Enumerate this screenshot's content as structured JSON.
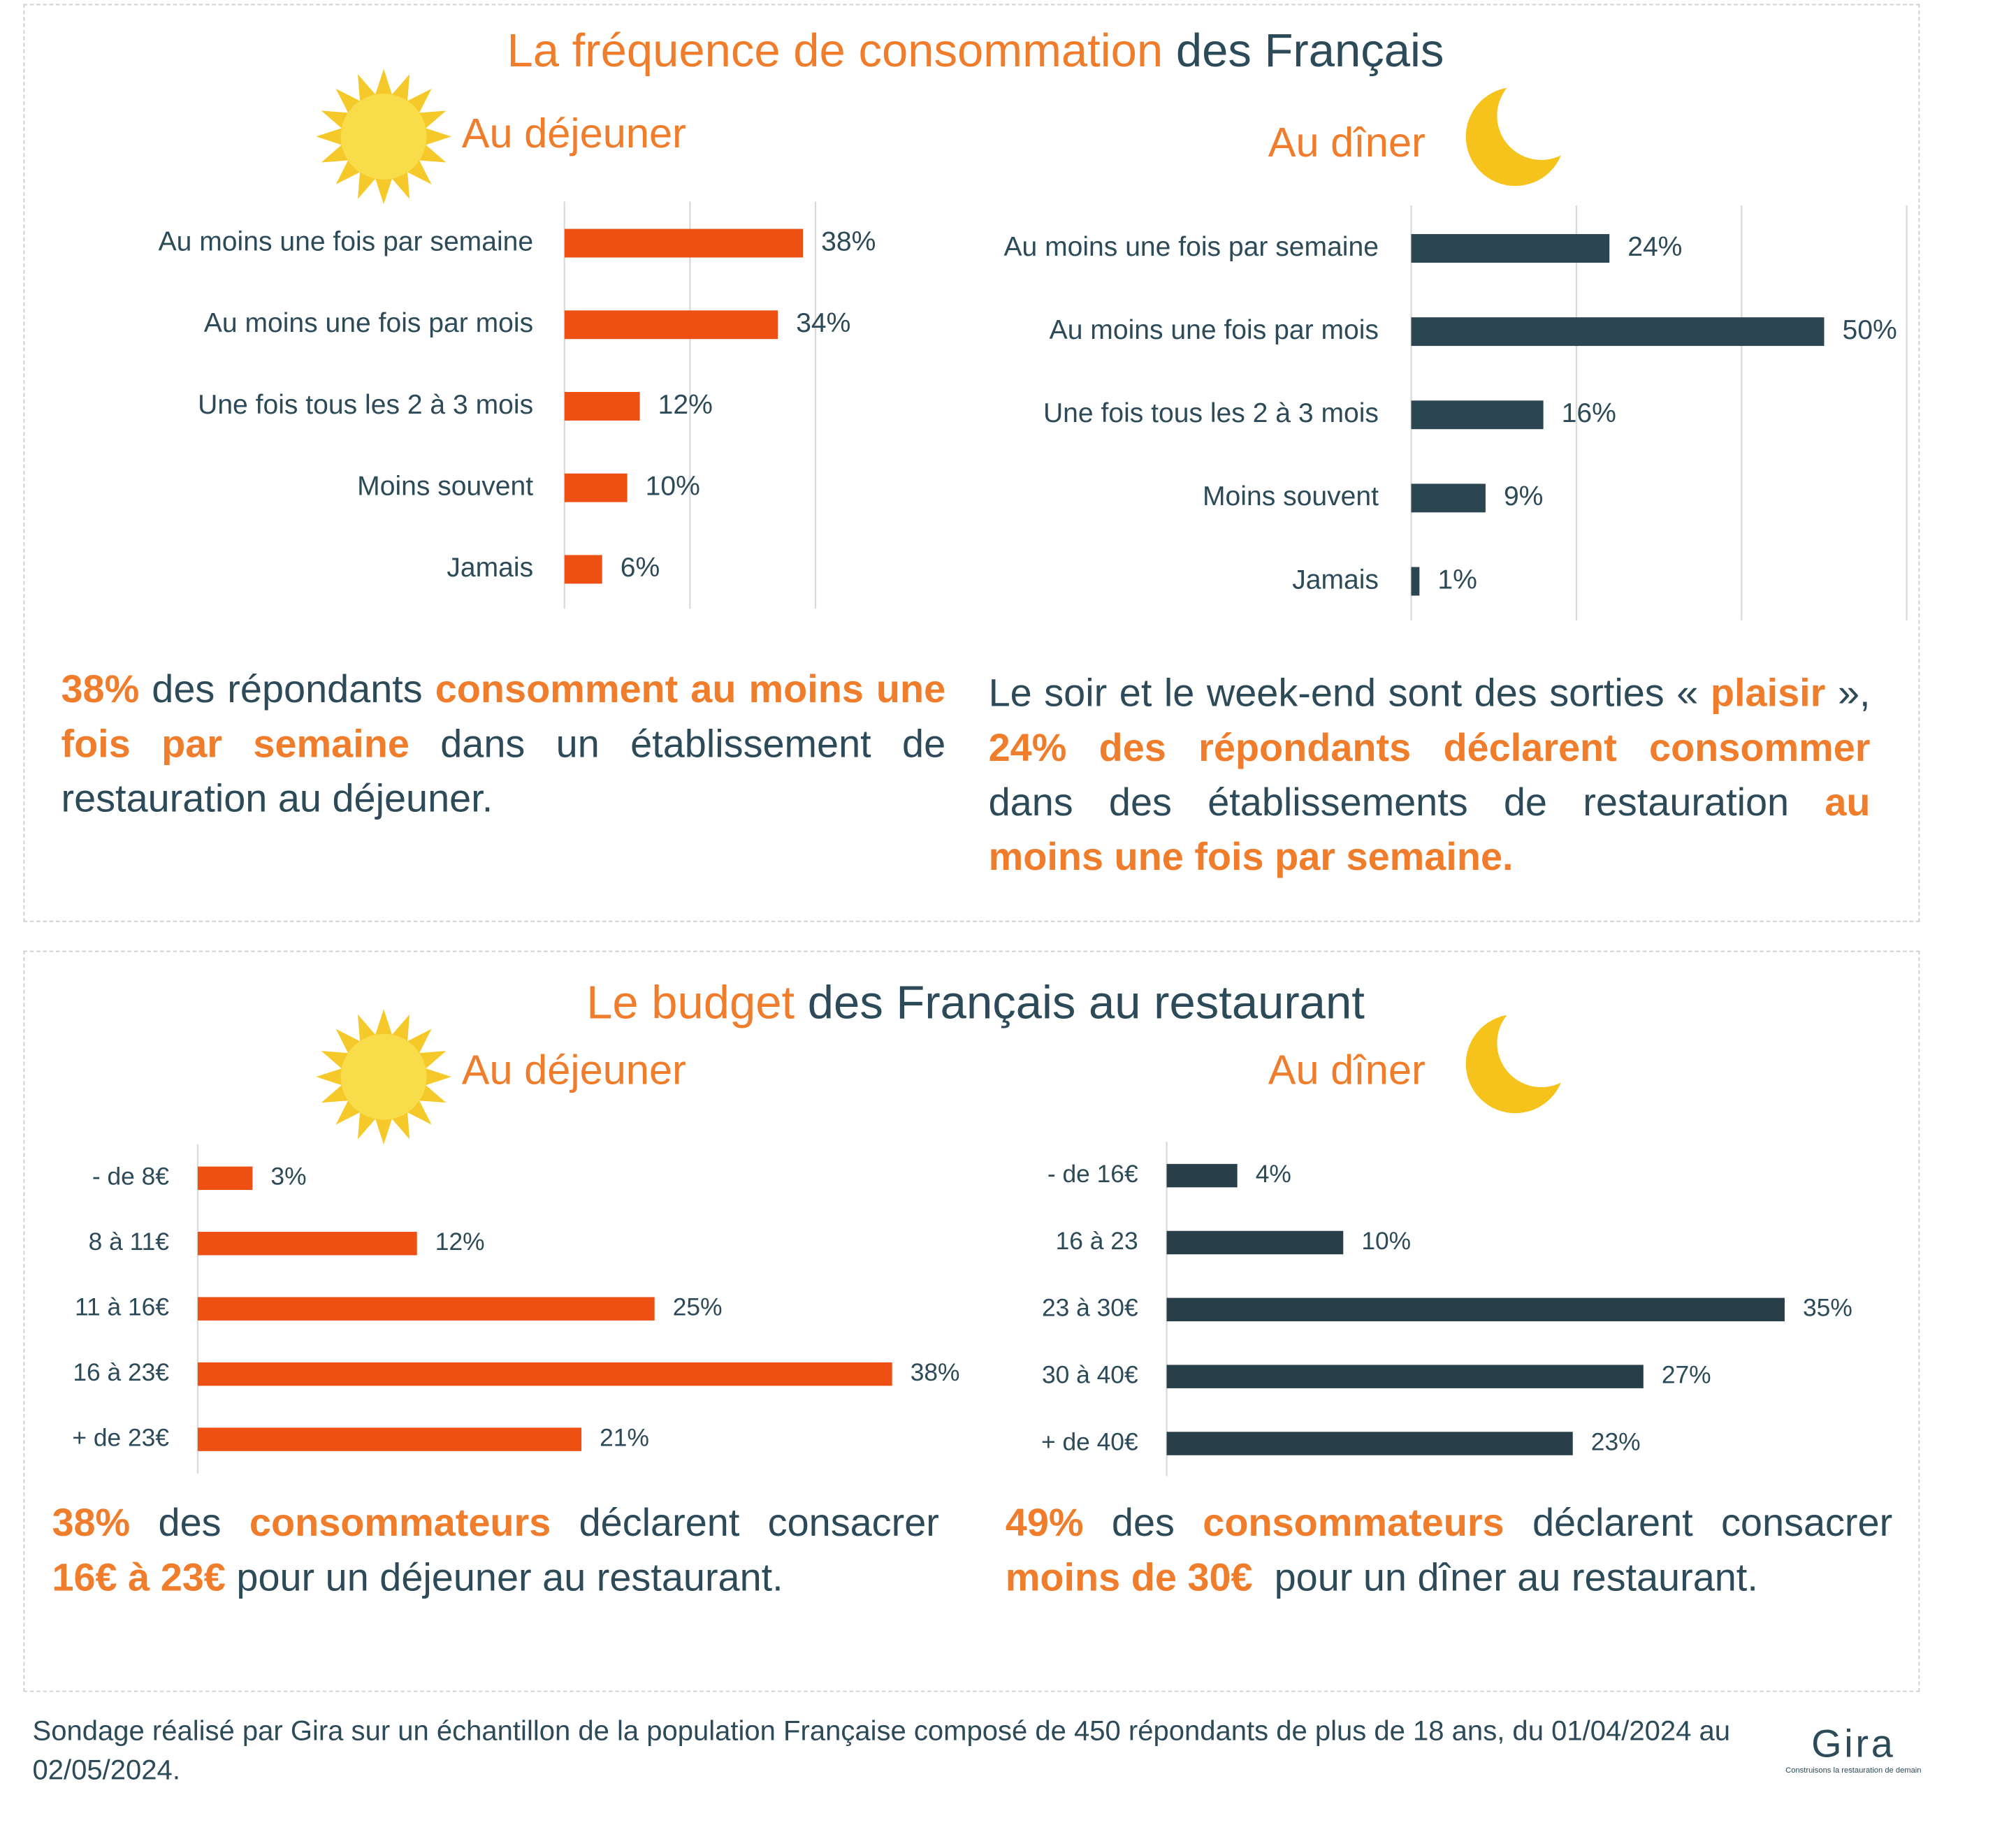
{
  "sections": [
    {
      "title": [
        {
          "text": "La fréquence de consommation",
          "accent": true
        },
        {
          "text": " des Français",
          "accent": false
        }
      ],
      "notes": [
        [
          {
            "text": "38%",
            "accent": true
          },
          {
            "text": " des répondants ",
            "accent": false
          },
          {
            "text": "consomment au moins une fois par semaine",
            "accent": true
          },
          {
            "text": " dans un établissement de restauration au déjeuner.",
            "accent": false
          }
        ],
        [
          {
            "text": "Le soir et le week-end sont des sorties « ",
            "accent": false
          },
          {
            "text": "plaisir",
            "accent": true
          },
          {
            "text": " », ",
            "accent": false
          },
          {
            "text": "24% des répondants déclarent consommer",
            "accent": true
          },
          {
            "text": " dans des établissements de restauration ",
            "accent": false
          },
          {
            "text": "au moins une fois par semaine.",
            "accent": true
          }
        ]
      ]
    },
    {
      "title": [
        {
          "text": "Le budget",
          "accent": true
        },
        {
          "text": " des Français au restaurant",
          "accent": false
        }
      ],
      "notes": [
        [
          {
            "text": "38%",
            "accent": true
          },
          {
            "text": " des ",
            "accent": false
          },
          {
            "text": "consommateurs",
            "accent": true
          },
          {
            "text": " déclarent consacrer ",
            "accent": false
          },
          {
            "text": "16€ à 23€",
            "accent": true
          },
          {
            "text": " pour un déjeuner au restaurant.",
            "accent": false
          }
        ],
        [
          {
            "text": "49%",
            "accent": true
          },
          {
            "text": " des ",
            "accent": false
          },
          {
            "text": "consommateurs",
            "accent": true
          },
          {
            "text": " déclarent consacrer ",
            "accent": false
          },
          {
            "text": "moins de 30€",
            "accent": true
          },
          {
            "text": "  pour un dîner au restaurant.",
            "accent": false
          }
        ]
      ]
    }
  ],
  "chart_data": [
    {
      "type": "hbar",
      "title": "Au déjeuner",
      "color": "#ee5014",
      "categories": [
        "Au moins une fois par semaine",
        "Au moins une fois par mois",
        "Une fois tous les 2 à 3 mois",
        "Moins souvent",
        "Jamais"
      ],
      "values": [
        38,
        34,
        12,
        10,
        6
      ],
      "value_labels": [
        "38%",
        "34%",
        "12%",
        "10%",
        "6%"
      ],
      "xlim": [
        0,
        40
      ],
      "xticks": [
        0,
        20,
        40
      ],
      "grid": true
    },
    {
      "type": "hbar",
      "title": "Au dîner",
      "color": "#2b4551",
      "categories": [
        "Au moins une fois par semaine",
        "Au moins une fois par mois",
        "Une fois tous les 2 à 3 mois",
        "Moins souvent",
        "Jamais"
      ],
      "values": [
        24,
        50,
        16,
        9,
        1
      ],
      "value_labels": [
        "24%",
        "50%",
        "16%",
        "9%",
        "1%"
      ],
      "xlim": [
        0,
        60
      ],
      "xticks": [
        0,
        20,
        40,
        60
      ],
      "grid": true
    },
    {
      "type": "hbar",
      "title": "Au déjeuner",
      "color": "#ee5014",
      "categories": [
        "- de 8€",
        "8 à 11€",
        "11 à 16€",
        "16 à 23€",
        "+ de 23€"
      ],
      "values": [
        3,
        12,
        25,
        38,
        21
      ],
      "value_labels": [
        "3%",
        "12%",
        "25%",
        "38%",
        "21%"
      ],
      "xlim": [
        0,
        40
      ],
      "grid": false
    },
    {
      "type": "hbar",
      "title": "Au dîner",
      "color": "#283f4a",
      "categories": [
        "- de 16€",
        "16 à 23",
        "23 à 30€",
        "30 à 40€",
        "+ de 40€"
      ],
      "values": [
        4,
        10,
        35,
        27,
        23
      ],
      "value_labels": [
        "4%",
        "10%",
        "35%",
        "27%",
        "23%"
      ],
      "xlim": [
        0,
        40
      ],
      "grid": false
    }
  ],
  "footer": "Sondage réalisé par Gira sur un échantillon de la population Française composé de 450 répondants de plus de 18 ans, du 01/04/2024 au 02/05/2024.",
  "logo": {
    "name": "Gira",
    "tagline": "Construisons la restauration de demain"
  }
}
